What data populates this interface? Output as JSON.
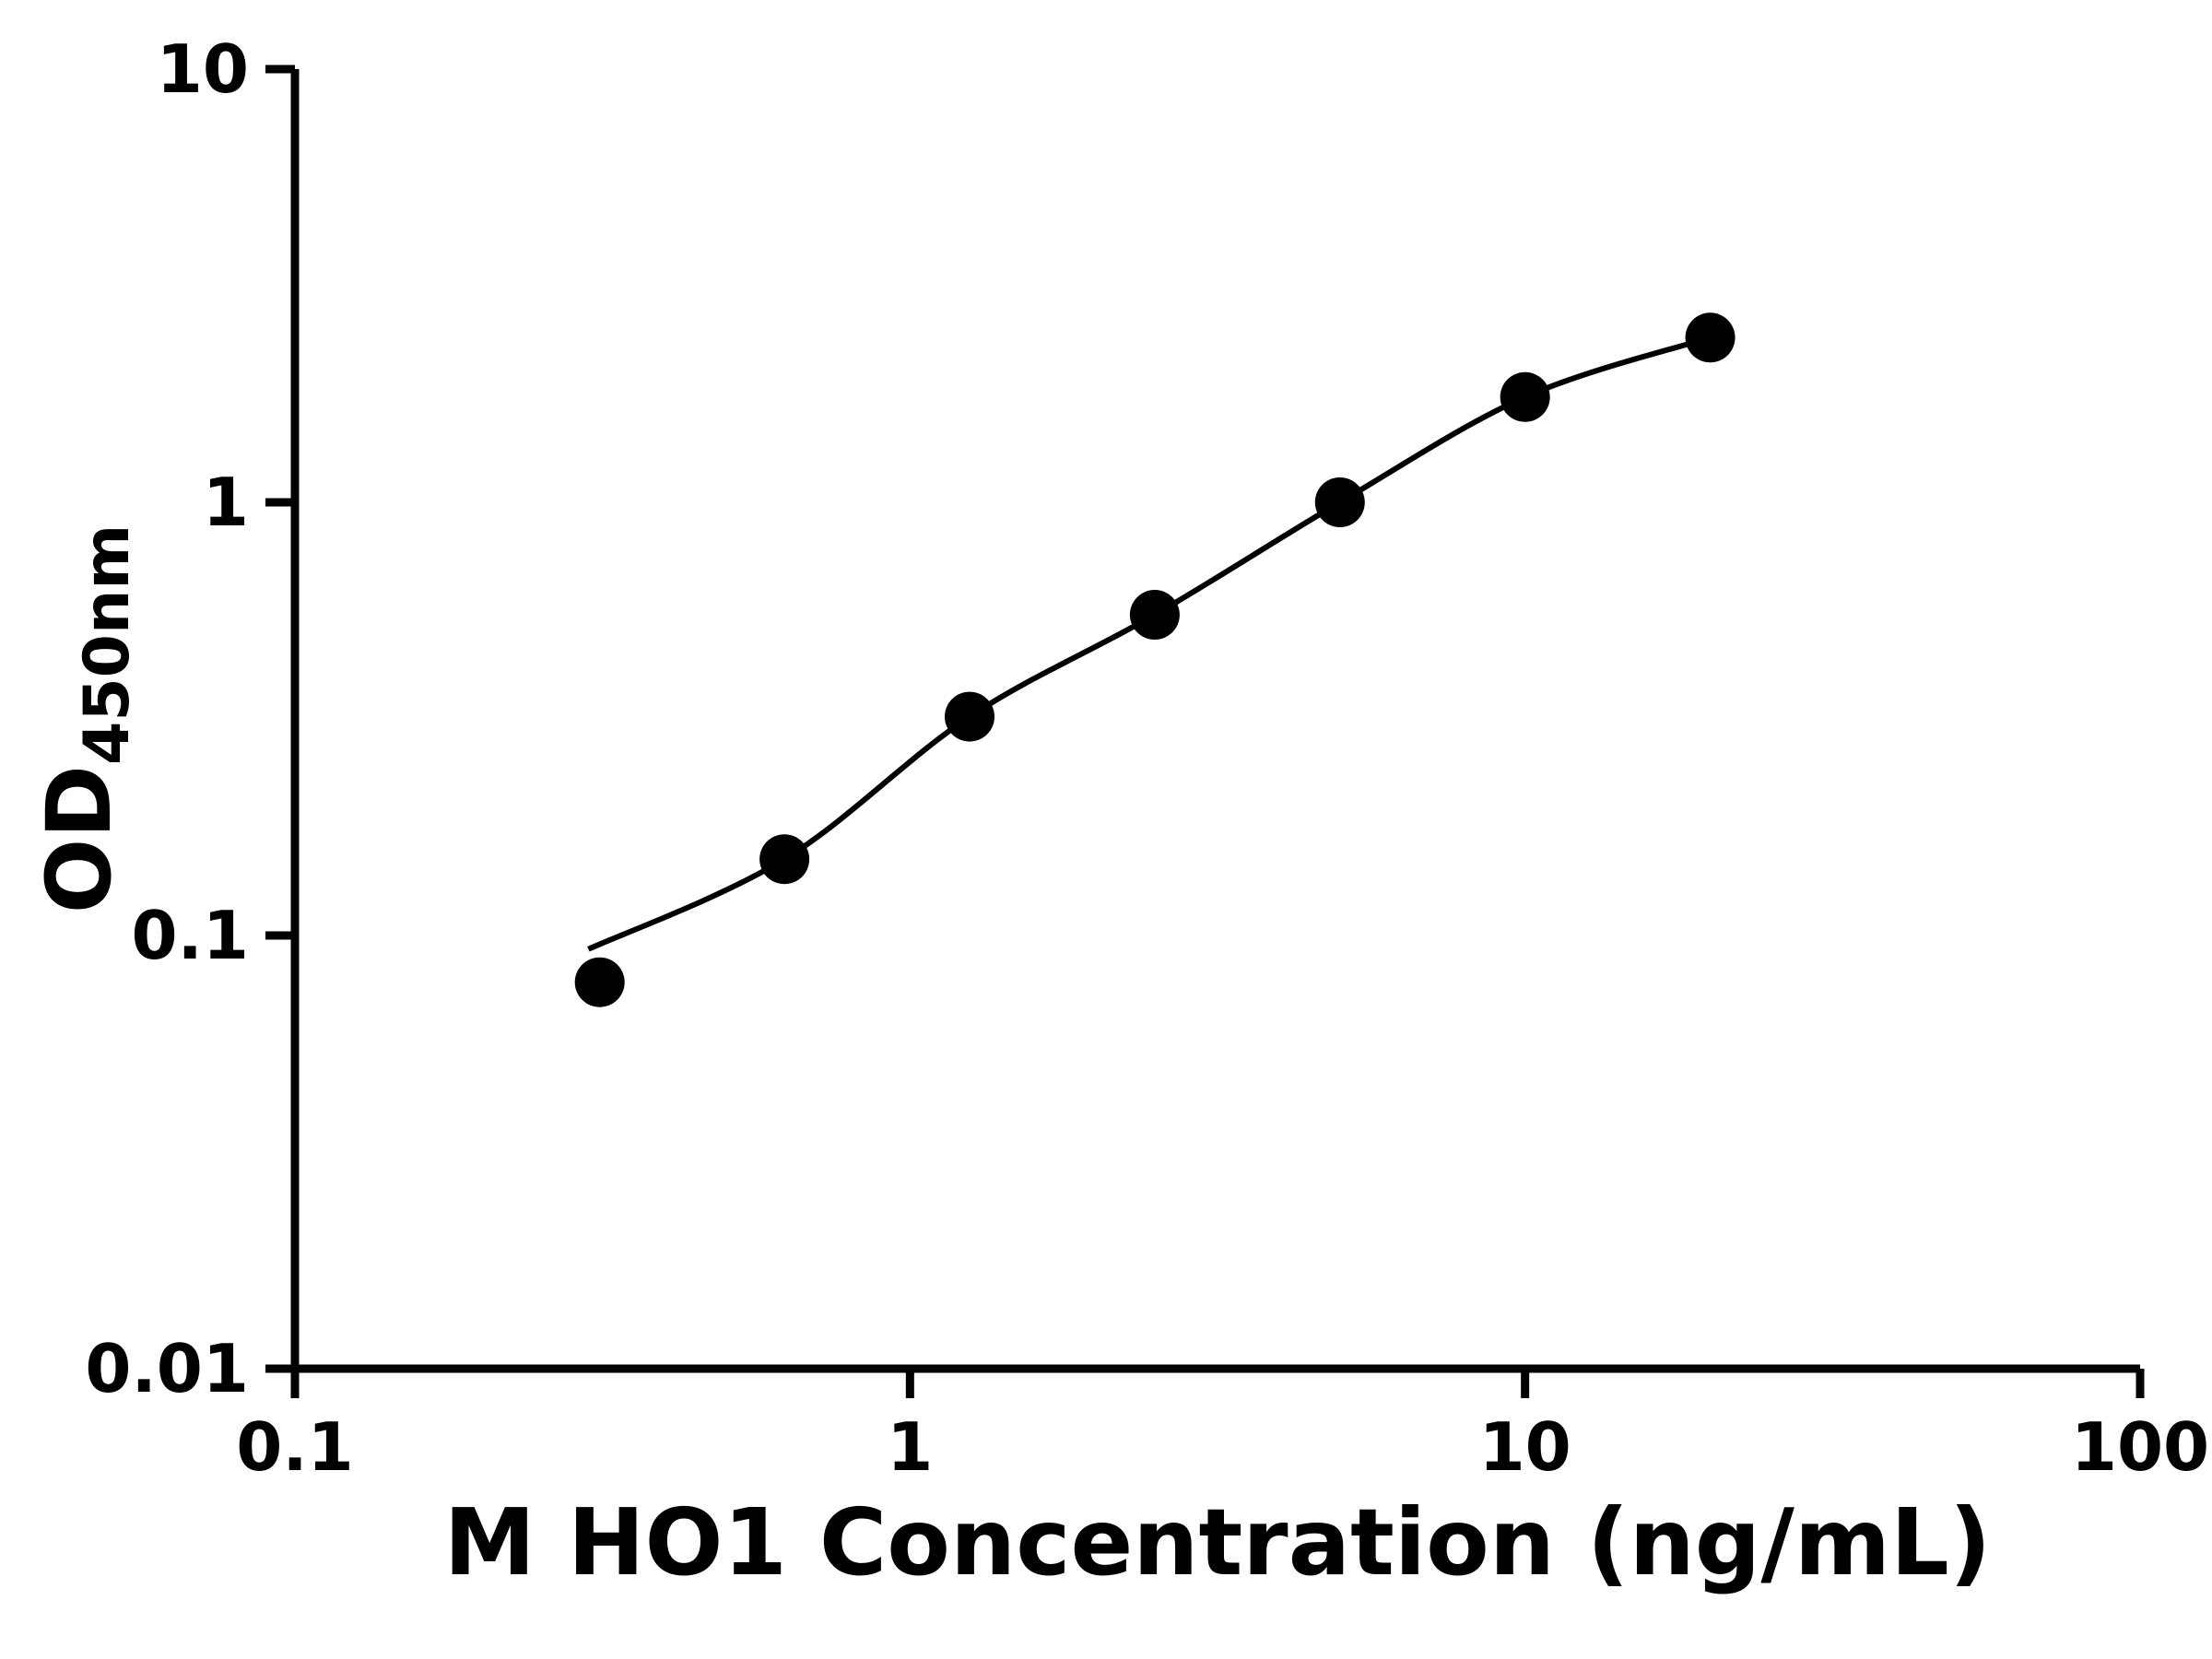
{
  "figure": {
    "background": "#ffffff",
    "text_color": "#000000"
  },
  "chart_data": {
    "type": "scatter",
    "title": "",
    "xlabel": "M HO1 Concentration (ng/mL)",
    "ylabel": "OD450nm",
    "ylabel_main": "OD",
    "ylabel_sub": "450nm",
    "xscale": "log",
    "yscale": "log",
    "xlim": [
      0.1,
      100
    ],
    "ylim": [
      0.01,
      10
    ],
    "x_tick_values": [
      0.1,
      1,
      10,
      100
    ],
    "x_tick_labels": [
      "0.1",
      "1",
      "10",
      "100"
    ],
    "y_tick_values": [
      0.01,
      0.1,
      1,
      10
    ],
    "y_tick_labels": [
      "0.01",
      "0.1",
      "1",
      "10"
    ],
    "grid": false,
    "legend": false,
    "series": [
      {
        "marker": "circle",
        "marker_color": "#000000",
        "line_color": "#000000",
        "x": [
          0.313,
          0.625,
          1.25,
          2.5,
          5,
          10,
          20
        ],
        "y": [
          0.078,
          0.15,
          0.32,
          0.55,
          1.0,
          1.75,
          2.4
        ]
      }
    ],
    "fit_curve_start": {
      "x": 0.3,
      "y": 0.093
    }
  }
}
